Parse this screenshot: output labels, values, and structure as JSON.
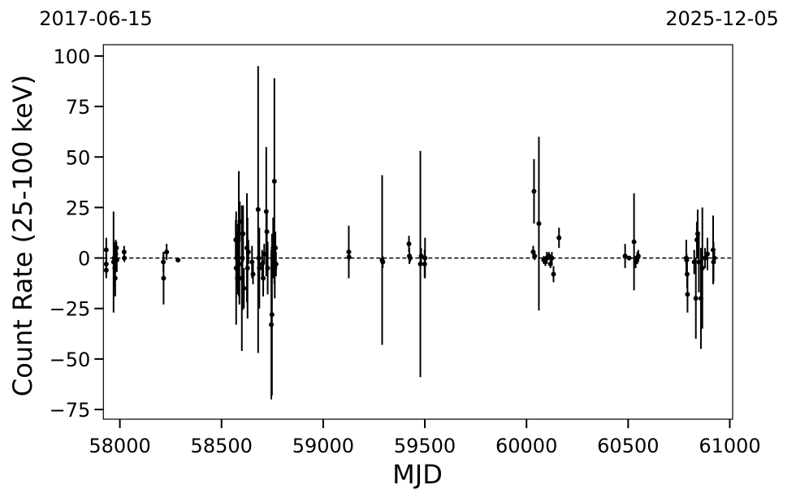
{
  "chart_data": {
    "type": "scatter",
    "title": "",
    "xlabel": "MJD",
    "ylabel": "Count Rate (25-100 keV)",
    "top_labels": {
      "left": "2017-06-15",
      "right": "2025-12-05"
    },
    "xlim": [
      57919,
      61014
    ],
    "ylim": [
      -79.8,
      105.6
    ],
    "xticks": [
      58000,
      58500,
      59000,
      59500,
      60000,
      60500,
      61000
    ],
    "yticks": [
      -75,
      -50,
      -25,
      0,
      25,
      50,
      75,
      100
    ],
    "grid": false,
    "reference_line": {
      "y": 0,
      "style": "dashed"
    },
    "marker_color": "#000000",
    "points": [
      [
        57933,
        4,
        6
      ],
      [
        57933,
        -3,
        5
      ],
      [
        57933,
        -6,
        4
      ],
      [
        57969,
        -2,
        25
      ],
      [
        57972,
        0,
        8
      ],
      [
        57975,
        -5,
        9
      ],
      [
        57977,
        -10,
        9
      ],
      [
        57980,
        2,
        7
      ],
      [
        57983,
        5,
        3
      ],
      [
        57985,
        -1,
        6
      ],
      [
        58021,
        3,
        3
      ],
      [
        58022,
        0,
        2
      ],
      [
        58214,
        -2,
        5
      ],
      [
        58215,
        -10,
        13
      ],
      [
        58230,
        3,
        4
      ],
      [
        58286,
        -1,
        1
      ],
      [
        58570,
        9,
        10
      ],
      [
        58572,
        -5,
        28
      ],
      [
        58575,
        0,
        13
      ],
      [
        58578,
        -10,
        8
      ],
      [
        58580,
        5,
        12
      ],
      [
        58585,
        12,
        31
      ],
      [
        58588,
        -3,
        20
      ],
      [
        58590,
        18,
        10
      ],
      [
        58600,
        -10,
        36
      ],
      [
        58603,
        0,
        26
      ],
      [
        58606,
        12,
        14
      ],
      [
        58610,
        -15,
        10
      ],
      [
        58625,
        5,
        27
      ],
      [
        58628,
        -5,
        25
      ],
      [
        58632,
        3,
        6
      ],
      [
        58650,
        -2,
        8
      ],
      [
        58655,
        -8,
        5
      ],
      [
        58680,
        24,
        71
      ],
      [
        58683,
        0,
        10
      ],
      [
        58686,
        -5,
        20
      ],
      [
        58700,
        -3,
        7
      ],
      [
        58705,
        -10,
        9
      ],
      [
        58710,
        2,
        5
      ],
      [
        58720,
        23,
        32
      ],
      [
        58723,
        13,
        10
      ],
      [
        58727,
        -5,
        13
      ],
      [
        58745,
        -33,
        37
      ],
      [
        58748,
        -28,
        40
      ],
      [
        58751,
        0,
        10
      ],
      [
        58754,
        5,
        15
      ],
      [
        58760,
        38,
        51
      ],
      [
        58762,
        -5,
        15
      ],
      [
        58765,
        5,
        8
      ],
      [
        58768,
        -3,
        6
      ],
      [
        59126,
        3,
        13
      ],
      [
        59127,
        0.5,
        2
      ],
      [
        59290,
        -1,
        42
      ],
      [
        59293,
        -2,
        3
      ],
      [
        59422,
        7,
        4
      ],
      [
        59424,
        1,
        4
      ],
      [
        59428,
        0,
        2
      ],
      [
        59478,
        -3,
        56
      ],
      [
        59482,
        1,
        4
      ],
      [
        59499,
        -3,
        7
      ],
      [
        59501,
        0,
        10
      ],
      [
        60037,
        33,
        16
      ],
      [
        60033,
        3,
        3
      ],
      [
        60040,
        1,
        2
      ],
      [
        60061,
        17,
        43
      ],
      [
        60085,
        -1,
        2
      ],
      [
        60093,
        -2,
        2
      ],
      [
        60100,
        0,
        3
      ],
      [
        60110,
        1,
        2
      ],
      [
        60118,
        -3,
        2
      ],
      [
        60125,
        0,
        3
      ],
      [
        60133,
        -8,
        4
      ],
      [
        60160,
        10,
        5
      ],
      [
        60485,
        1,
        6
      ],
      [
        60505,
        0,
        1
      ],
      [
        60529,
        8,
        24
      ],
      [
        60537,
        -2,
        3
      ],
      [
        60545,
        0,
        3
      ],
      [
        60550,
        1,
        3
      ],
      [
        60786,
        0,
        9
      ],
      [
        60788,
        -1,
        3
      ],
      [
        60790,
        -8,
        7
      ],
      [
        60792,
        -18,
        9
      ],
      [
        60825,
        -2,
        6
      ],
      [
        60833,
        -20,
        20
      ],
      [
        60838,
        9,
        9
      ],
      [
        60842,
        12,
        12
      ],
      [
        60848,
        -2,
        15
      ],
      [
        60858,
        -20,
        25
      ],
      [
        60865,
        -5,
        30
      ],
      [
        60878,
        0,
        5
      ],
      [
        60890,
        2,
        8
      ],
      [
        60918,
        4,
        17
      ],
      [
        60920,
        -2,
        10
      ],
      [
        60924,
        0,
        3
      ]
    ]
  }
}
